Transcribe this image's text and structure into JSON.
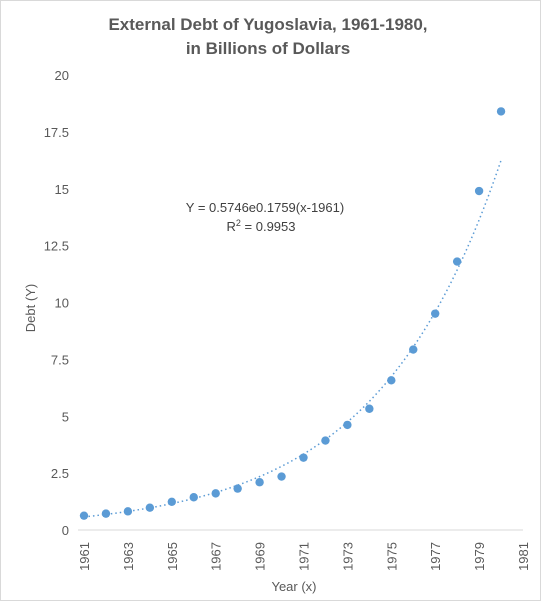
{
  "chart_data": {
    "type": "scatter",
    "title": [
      "External Debt of Yugoslavia, 1961-1980,",
      "in Billions of Dollars"
    ],
    "xlabel": "Year (x)",
    "ylabel": "Debt (Y)",
    "xlim": [
      1961,
      1981
    ],
    "ylim": [
      0,
      20
    ],
    "xticks": [
      "1961",
      "1963",
      "1965",
      "1967",
      "1969",
      "1971",
      "1973",
      "1975",
      "1977",
      "1979",
      "1981"
    ],
    "yticks": [
      "0",
      "2.5",
      "5",
      "7.5",
      "10",
      "12.5",
      "15",
      "17.5",
      "20"
    ],
    "grid": false,
    "series": [
      {
        "color": "#5b9bd5",
        "x": [
          1961,
          1962,
          1963,
          1964,
          1965,
          1966,
          1967,
          1968,
          1969,
          1970,
          1971,
          1972,
          1973,
          1974,
          1975,
          1976,
          1977,
          1978,
          1979,
          1980
        ],
        "y": [
          0.63,
          0.72,
          0.82,
          0.98,
          1.24,
          1.44,
          1.61,
          1.82,
          2.1,
          2.35,
          3.18,
          3.93,
          4.62,
          5.33,
          6.58,
          7.93,
          9.51,
          11.8,
          14.9,
          18.4
        ]
      }
    ],
    "trendline": {
      "type": "exponential",
      "a": 0.5746,
      "b": 0.1759,
      "color": "#5b9bd5",
      "style": "dotted",
      "equation_label": "Y = 0.5746e0.1759(x-1961)",
      "r2_label_prefix": "R",
      "r2_label_sup": "2",
      "r2_label_value": " = 0.9953"
    }
  }
}
